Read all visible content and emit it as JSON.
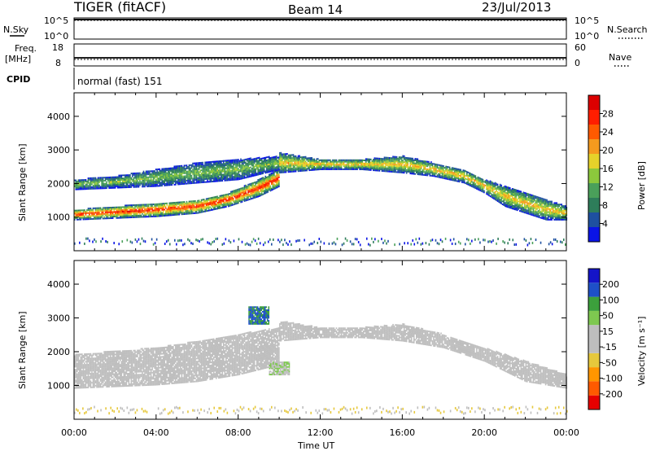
{
  "header": {
    "title": "TIGER (fitACF)",
    "beam": "Beam 14",
    "date": "23/Jul/2013"
  },
  "panels": {
    "nsky": {
      "left_label": "N.Sky",
      "left_ticks": [
        "10^5",
        "10^0"
      ],
      "right_ticks": [
        "10^5",
        "10^0"
      ],
      "right_label": "N.Search"
    },
    "freq": {
      "left_label_line1": "Freq.",
      "left_label_line2": "[MHz]",
      "left_ticks": [
        "18",
        "8"
      ],
      "right_ticks": [
        "60",
        "0"
      ],
      "right_label": "Nave"
    },
    "cpid": {
      "label": "CPID",
      "text": "normal (fast) 151"
    }
  },
  "colors": {
    "power_scale": [
      "#0a14e6",
      "#1e50a0",
      "#2e7d5a",
      "#4aa05a",
      "#8cc83c",
      "#e6d22a",
      "#f59a1e",
      "#ff5a00",
      "#ff1e00",
      "#dc0000"
    ],
    "velocity_scale": [
      "#e60000",
      "#ff5a00",
      "#ff9600",
      "#e6c83c",
      "#bebebe",
      "#bebebe",
      "#7ec850",
      "#3ca03c",
      "#1e50c8",
      "#1414c8"
    ]
  },
  "chart_data": [
    {
      "type": "heatmap",
      "title": "",
      "xlabel": "Time UT",
      "ylabel": "Slant Range [km]",
      "x_ticks": [
        "00:00",
        "04:00",
        "08:00",
        "12:00",
        "16:00",
        "20:00",
        "00:00"
      ],
      "y_ticks": [
        "1000",
        "2000",
        "3000",
        "4000"
      ],
      "ylim": [
        0,
        4700
      ],
      "colorbar": {
        "label": "Power [dB]",
        "ticks": [
          "4",
          "8",
          "12",
          "16",
          "20",
          "24",
          "28"
        ],
        "range": [
          0,
          32
        ]
      },
      "echo_regions": [
        {
          "t": [
            0.0,
            2.0,
            4.0,
            6.0,
            7.5,
            9.0,
            10.0
          ],
          "range_low": [
            900,
            950,
            1000,
            1100,
            1300,
            1600,
            1900
          ],
          "range_high": [
            1200,
            1300,
            1400,
            1500,
            1700,
            2100,
            2400
          ],
          "peak_power": 28
        },
        {
          "t": [
            0.0,
            2.0,
            4.0,
            6.0,
            8.0,
            10.0
          ],
          "range_low": [
            1800,
            1850,
            1900,
            2000,
            2100,
            2400
          ],
          "range_high": [
            2100,
            2200,
            2400,
            2600,
            2700,
            2800
          ],
          "peak_power": 14
        },
        {
          "t": [
            10.0,
            12.0,
            14.0,
            16.0,
            17.5,
            19.0,
            20.0,
            21.0,
            22.0,
            23.0,
            24.0
          ],
          "range_low": [
            2300,
            2400,
            2400,
            2300,
            2200,
            2000,
            1700,
            1300,
            1100,
            900,
            900
          ],
          "range_high": [
            2900,
            2700,
            2700,
            2800,
            2600,
            2400,
            2100,
            1900,
            1700,
            1500,
            1300
          ],
          "peak_power": 20
        }
      ]
    },
    {
      "type": "heatmap",
      "title": "",
      "xlabel": "Time UT",
      "ylabel": "Slant Range [km]",
      "x_ticks": [
        "00:00",
        "04:00",
        "08:00",
        "12:00",
        "16:00",
        "20:00",
        "00:00"
      ],
      "y_ticks": [
        "1000",
        "2000",
        "3000",
        "4000"
      ],
      "ylim": [
        0,
        4700
      ],
      "colorbar": {
        "label": "Velocity [m s⁻¹]",
        "ticks": [
          "200",
          "100",
          "50",
          "15",
          "-15",
          "-50",
          "-100",
          "-200"
        ],
        "range": [
          -250,
          250
        ]
      },
      "echo_regions": [
        {
          "t": [
            0.0,
            2.0,
            4.0,
            6.0,
            8.0,
            10.0
          ],
          "range_low": [
            900,
            950,
            1000,
            1100,
            1300,
            1600
          ],
          "range_high": [
            1900,
            2000,
            2100,
            2300,
            2500,
            2700
          ],
          "typical_velocity": -20
        },
        {
          "t": [
            10.0,
            12.0,
            14.0,
            16.0,
            18.0,
            20.0,
            22.0,
            24.0
          ],
          "range_low": [
            2300,
            2400,
            2400,
            2300,
            2100,
            1700,
            1100,
            900
          ],
          "range_high": [
            2900,
            2700,
            2700,
            2800,
            2500,
            2100,
            1700,
            1300
          ],
          "typical_velocity": 0
        },
        {
          "t": [
            8.5,
            9.5
          ],
          "range_low": [
            2800,
            2800
          ],
          "range_high": [
            3300,
            3300
          ],
          "typical_velocity": 150
        },
        {
          "t": [
            9.5,
            10.5
          ],
          "range_low": [
            1300,
            1300
          ],
          "range_high": [
            1700,
            1700
          ],
          "typical_velocity": 50
        }
      ]
    }
  ]
}
